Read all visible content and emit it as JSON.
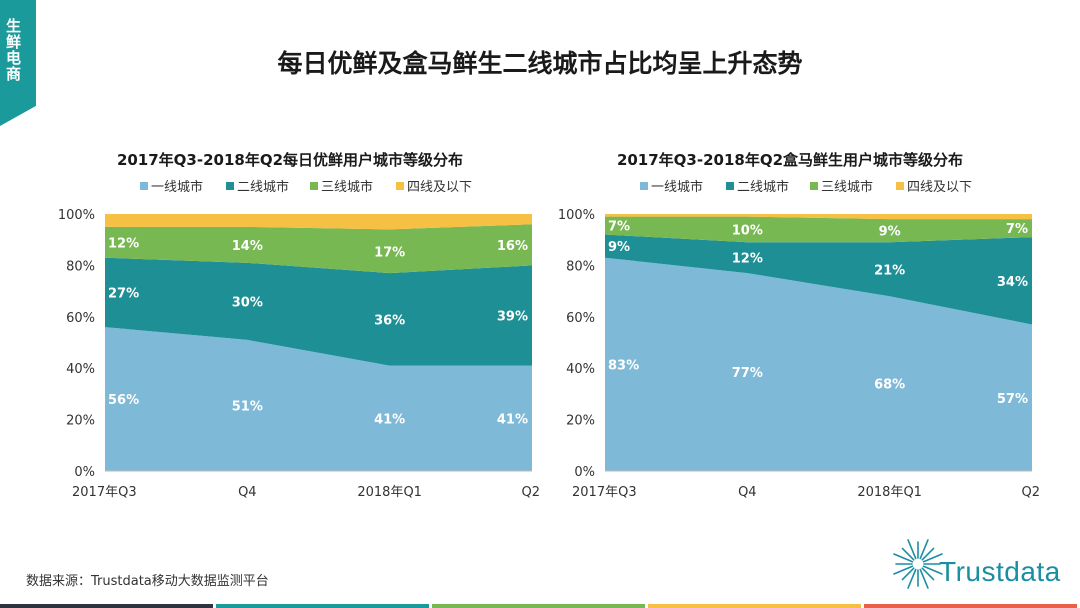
{
  "side_tab": "生鲜电商",
  "main_title": "每日优鲜及盒马鲜生二线城市占比均呈上升态势",
  "source": "数据来源：Trustdata移动大数据监测平台",
  "logo_text": "Trustdata",
  "colors": {
    "tier1": "#7ebad8",
    "tier2": "#1f8f96",
    "tier3": "#77b852",
    "tier4": "#f5c043",
    "accent": "#1a9a9b"
  },
  "chart_data": [
    {
      "type": "area",
      "stacked": true,
      "title": "2017年Q3-2018年Q2每日优鲜用户城市等级分布",
      "categories": [
        "2017年Q3",
        "Q4",
        "2018年Q1",
        "Q2"
      ],
      "y_ticks": [
        "0%",
        "20%",
        "40%",
        "60%",
        "80%",
        "100%"
      ],
      "ylim": [
        0,
        100
      ],
      "legend_position": "top",
      "series": [
        {
          "name": "一线城市",
          "values": [
            56,
            51,
            41,
            41
          ],
          "labels": [
            "56%",
            "51%",
            "41%",
            "41%"
          ]
        },
        {
          "name": "二线城市",
          "values": [
            27,
            30,
            36,
            39
          ],
          "labels": [
            "27%",
            "30%",
            "36%",
            "39%"
          ]
        },
        {
          "name": "三线城市",
          "values": [
            12,
            14,
            17,
            16
          ],
          "labels": [
            "12%",
            "14%",
            "17%",
            "16%"
          ]
        },
        {
          "name": "四线及以下",
          "values": [
            5,
            5,
            6,
            4
          ],
          "labels": [
            "",
            "",
            "",
            ""
          ]
        }
      ]
    },
    {
      "type": "area",
      "stacked": true,
      "title": "2017年Q3-2018年Q2盒马鲜生用户城市等级分布",
      "categories": [
        "2017年Q3",
        "Q4",
        "2018年Q1",
        "Q2"
      ],
      "y_ticks": [
        "0%",
        "20%",
        "40%",
        "60%",
        "80%",
        "100%"
      ],
      "ylim": [
        0,
        100
      ],
      "legend_position": "top",
      "series": [
        {
          "name": "一线城市",
          "values": [
            83,
            77,
            68,
            57
          ],
          "labels": [
            "83%",
            "77%",
            "68%",
            "57%"
          ]
        },
        {
          "name": "二线城市",
          "values": [
            9,
            12,
            21,
            34
          ],
          "labels": [
            "9%",
            "12%",
            "21%",
            "34%"
          ]
        },
        {
          "name": "三线城市",
          "values": [
            7,
            10,
            9,
            7
          ],
          "labels": [
            "7%",
            "10%",
            "9%",
            "7%"
          ]
        },
        {
          "name": "四线及以下",
          "values": [
            1,
            1,
            2,
            2
          ],
          "labels": [
            "",
            "",
            "",
            ""
          ]
        }
      ]
    }
  ]
}
